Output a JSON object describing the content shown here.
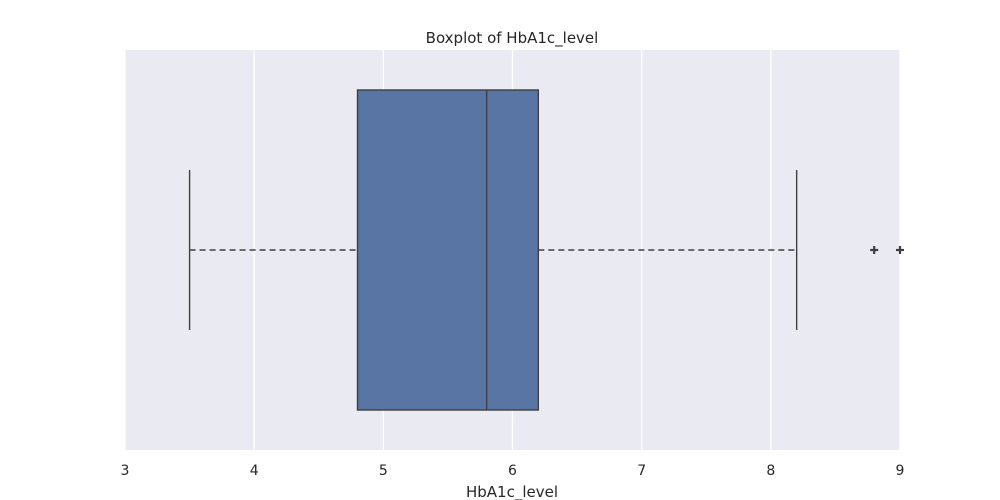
{
  "chart_data": {
    "type": "boxplot",
    "title": "Boxplot of HbA1c_level",
    "xlabel": "HbA1c_level",
    "ylabel": "",
    "xlim": [
      3,
      9
    ],
    "xticks": [
      "3",
      "4",
      "5",
      "6",
      "7",
      "8",
      "9"
    ],
    "grid": true,
    "orientation": "horizontal",
    "box": {
      "whisker_low": 3.5,
      "q1": 4.8,
      "median": 5.8,
      "q3": 6.2,
      "whisker_high": 8.2,
      "outliers": [
        8.8,
        9.0
      ]
    },
    "colors": {
      "background": "#eaeaf2",
      "box_fill": "#5975a4",
      "line": "#3f3f3f",
      "grid": "#ffffff"
    }
  }
}
